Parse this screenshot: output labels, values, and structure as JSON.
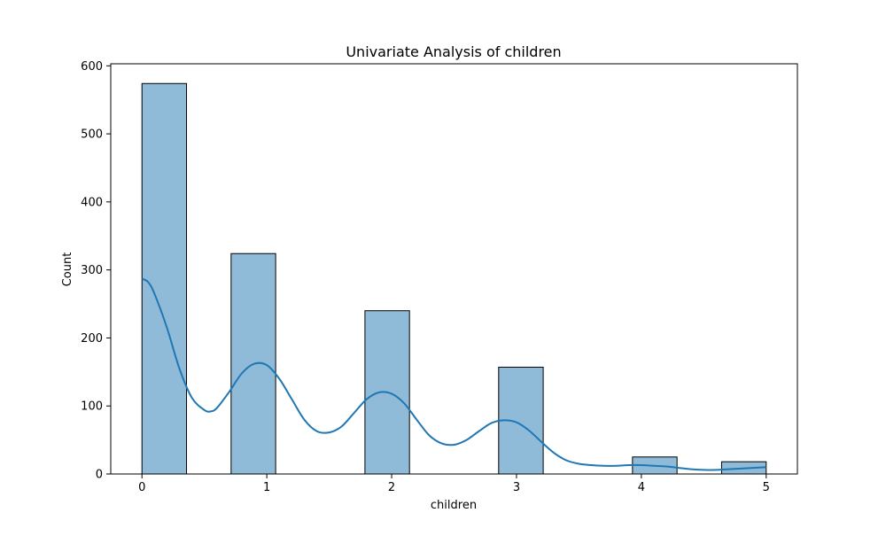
{
  "chart_data": {
    "type": "bar",
    "title": "Univariate Analysis of children",
    "xlabel": "children",
    "ylabel": "Count",
    "xlim": [
      -0.25,
      5.25
    ],
    "ylim": [
      0,
      603
    ],
    "xticks": [
      0,
      1,
      2,
      3,
      4,
      5
    ],
    "xtick_labels": [
      "0",
      "1",
      "2",
      "3",
      "4",
      "5"
    ],
    "yticks": [
      0,
      100,
      200,
      300,
      400,
      500,
      600
    ],
    "ytick_labels": [
      "0",
      "100",
      "200",
      "300",
      "400",
      "500",
      "600"
    ],
    "grid": false,
    "bins": [
      {
        "x0": 0.0,
        "x1": 0.357,
        "count": 574
      },
      {
        "x0": 0.714,
        "x1": 1.071,
        "count": 324
      },
      {
        "x0": 1.786,
        "x1": 2.143,
        "count": 240
      },
      {
        "x0": 2.857,
        "x1": 3.214,
        "count": 157
      },
      {
        "x0": 3.929,
        "x1": 4.286,
        "count": 25
      },
      {
        "x0": 4.643,
        "x1": 5.0,
        "count": 18
      }
    ],
    "kde": {
      "x": [
        0.0,
        0.05,
        0.1,
        0.2,
        0.3,
        0.4,
        0.5,
        0.55,
        0.6,
        0.7,
        0.8,
        0.9,
        1.0,
        1.1,
        1.2,
        1.3,
        1.4,
        1.5,
        1.6,
        1.7,
        1.8,
        1.9,
        2.0,
        2.1,
        2.2,
        2.3,
        2.4,
        2.5,
        2.6,
        2.7,
        2.8,
        2.9,
        3.0,
        3.1,
        3.2,
        3.3,
        3.4,
        3.5,
        3.6,
        3.7,
        3.8,
        3.9,
        4.0,
        4.1,
        4.2,
        4.3,
        4.4,
        4.5,
        4.6,
        4.7,
        4.8,
        4.9,
        5.0
      ],
      "y": [
        287,
        282,
        265,
        215,
        155,
        112,
        94,
        92,
        97,
        121,
        148,
        162,
        160,
        140,
        110,
        80,
        63,
        61,
        70,
        90,
        110,
        120,
        118,
        104,
        80,
        57,
        45,
        43,
        50,
        63,
        75,
        79,
        76,
        64,
        47,
        31,
        20,
        15,
        13,
        12,
        12,
        13,
        13,
        12,
        11,
        9,
        7,
        6,
        6,
        7,
        8,
        9,
        10
      ]
    },
    "bar_color": "#1f77b4",
    "bar_opacity": 0.5,
    "bar_edge_color": "#000000",
    "line_color": "#1f77b4"
  }
}
